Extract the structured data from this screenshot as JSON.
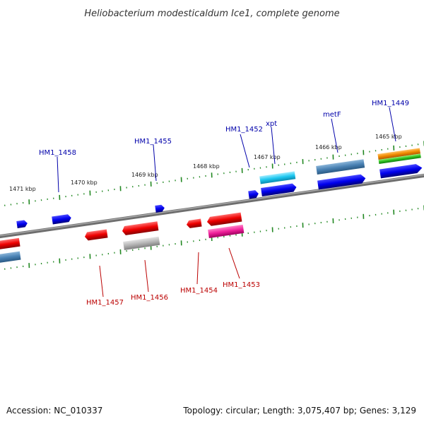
{
  "title": "Heliobacterium modesticaldum Ice1, complete genome",
  "footer": {
    "accession": "Accession: NC_010337",
    "topology": "Topology: circular; Length: 3,075,407 bp; Genes: 3,129"
  },
  "colors": {
    "forward_label": "#0000aa",
    "reverse_label": "#bb0000",
    "tick": "#228822",
    "backbone": "#808080"
  },
  "kbp_ticks": [
    {
      "id": "1471",
      "label": "1471 kbp"
    },
    {
      "id": "1470",
      "label": "1470 kbp"
    },
    {
      "id": "1469",
      "label": "1469 kbp"
    },
    {
      "id": "1468",
      "label": "1468 kbp"
    },
    {
      "id": "1467",
      "label": "1467 kbp"
    },
    {
      "id": "1466",
      "label": "1466 kbp"
    },
    {
      "id": "1465",
      "label": "1465 kbp"
    }
  ],
  "genes_forward": [
    {
      "id": "hm1-1458",
      "label": "HM1_1458"
    },
    {
      "id": "hm1-1455",
      "label": "HM1_1455"
    },
    {
      "id": "hm1-1452",
      "label": "HM1_1452"
    },
    {
      "id": "xpt",
      "label": "xpt"
    },
    {
      "id": "metf",
      "label": "metF"
    },
    {
      "id": "hm1-1449",
      "label": "HM1_1449"
    }
  ],
  "genes_reverse": [
    {
      "id": "hm1-1457",
      "label": "HM1_1457"
    },
    {
      "id": "hm1-1456",
      "label": "HM1_1456"
    },
    {
      "id": "hm1-1454",
      "label": "HM1_1454"
    },
    {
      "id": "hm1-1453",
      "label": "HM1_1453"
    }
  ]
}
